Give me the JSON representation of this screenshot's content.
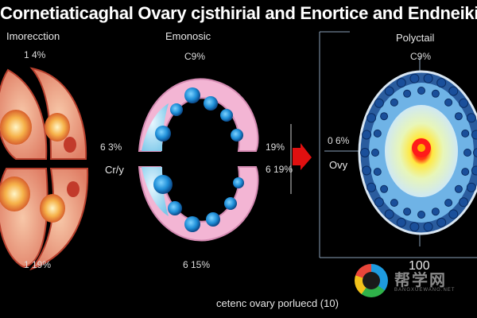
{
  "title": "Cornetiaticaghal Ovary cjsthirial and Enortice and Endneiking",
  "panels": {
    "left": {
      "heading": "Imorecction",
      "top_pct": "1 4%",
      "bottom_pct": "1 19%",
      "side_pct": "6 3%",
      "side_label": "Cr/y"
    },
    "middle": {
      "heading": "Emonosic",
      "top_pct": "C9%",
      "bottom_pct": "6 15%",
      "side_top_pct": "19%",
      "side_bottom_pct": "6 19%"
    },
    "right": {
      "heading": "Polyctail",
      "top_pct": "C9%",
      "side_pct": "0 6%",
      "side_label": "Ovy",
      "bottom_value": "100"
    }
  },
  "caption": "cetenc ovary porluecd (10)",
  "watermark": {
    "text": "帮学网",
    "sub": "BANGXUEWANG.NET"
  },
  "colors": {
    "background": "#000000",
    "arrow": "#e01010",
    "cell_blue": "#1f8fd8",
    "ring_pink": "#f3b5d4"
  }
}
